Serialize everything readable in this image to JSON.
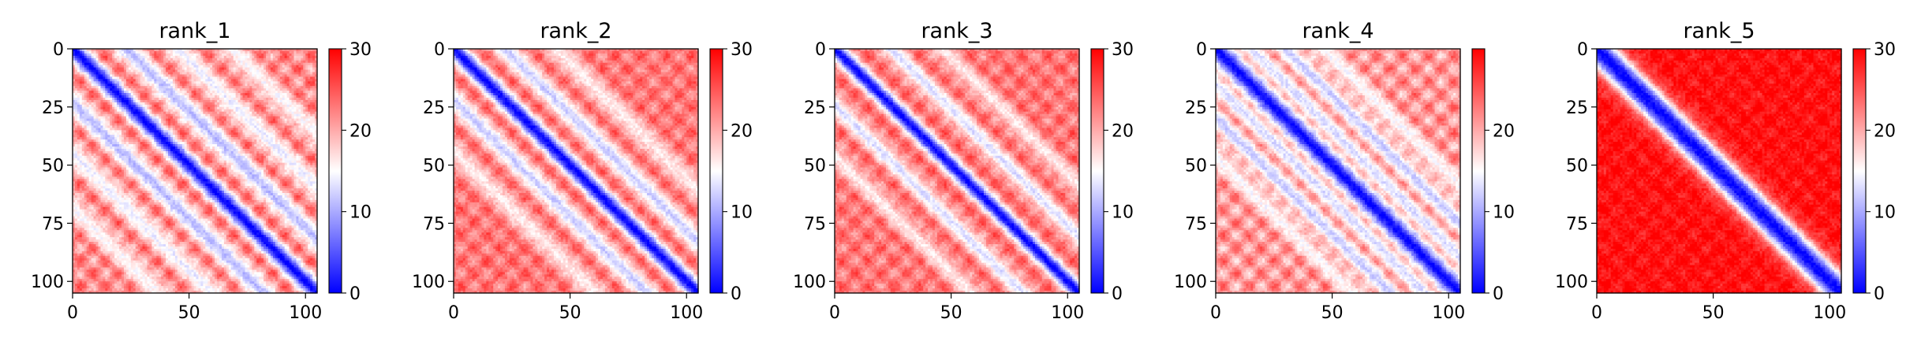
{
  "chart_data": [
    {
      "type": "heatmap",
      "title": "rank_1",
      "xlabel": "",
      "ylabel": "",
      "matrix_size": 105,
      "x_ticks": [
        0,
        50,
        100
      ],
      "y_ticks": [
        0,
        25,
        50,
        75,
        100
      ],
      "xlim": [
        0,
        105
      ],
      "ylim": [
        105,
        0
      ],
      "colorbar": {
        "range": [
          0,
          30
        ],
        "ticks": [
          0,
          10,
          20,
          30
        ],
        "colors": [
          "#0000ff",
          "#ffffff",
          "#ff0000"
        ]
      },
      "values_description": {
        "diagonal_value": 0,
        "band_width": 3.5,
        "offdiag_bands": [
          {
            "offset": 23,
            "value": 11,
            "width": 4
          },
          {
            "offset": 45,
            "value": 14,
            "width": 4
          },
          {
            "offset": 68,
            "value": 15,
            "width": 4
          }
        ],
        "background_value": 22,
        "checker_period": 11,
        "checker_amplitude": 4
      }
    },
    {
      "type": "heatmap",
      "title": "rank_2",
      "xlabel": "",
      "ylabel": "",
      "matrix_size": 105,
      "x_ticks": [
        0,
        50,
        100
      ],
      "y_ticks": [
        0,
        25,
        50,
        75,
        100
      ],
      "xlim": [
        0,
        105
      ],
      "ylim": [
        105,
        0
      ],
      "colorbar": {
        "range": [
          0,
          30
        ],
        "ticks": [
          0,
          10,
          20,
          30
        ],
        "colors": [
          "#0000ff",
          "#ffffff",
          "#ff0000"
        ]
      },
      "values_description": {
        "diagonal_value": 0,
        "band_width": 3.5,
        "offdiag_bands": [
          {
            "offset": 22,
            "value": 12,
            "width": 4
          },
          {
            "offset": 44,
            "value": 16,
            "width": 4
          }
        ],
        "background_value": 23,
        "checker_period": 11,
        "checker_amplitude": 3
      }
    },
    {
      "type": "heatmap",
      "title": "rank_3",
      "xlabel": "",
      "ylabel": "",
      "matrix_size": 105,
      "x_ticks": [
        0,
        50,
        100
      ],
      "y_ticks": [
        0,
        25,
        50,
        75,
        100
      ],
      "xlim": [
        0,
        105
      ],
      "ylim": [
        105,
        0
      ],
      "colorbar": {
        "range": [
          0,
          30
        ],
        "ticks": [
          0,
          10,
          20,
          30
        ],
        "colors": [
          "#0000ff",
          "#ffffff",
          "#ff0000"
        ]
      },
      "values_description": {
        "diagonal_value": 0,
        "band_width": 3.2,
        "offdiag_bands": [
          {
            "offset": 24,
            "value": 13,
            "width": 3.5
          },
          {
            "offset": 46,
            "value": 16,
            "width": 3.5
          }
        ],
        "background_value": 23,
        "checker_period": 11,
        "checker_amplitude": 3
      }
    },
    {
      "type": "heatmap",
      "title": "rank_4",
      "xlabel": "",
      "ylabel": "",
      "matrix_size": 105,
      "x_ticks": [
        0,
        50,
        100
      ],
      "y_ticks": [
        0,
        25,
        50,
        75,
        100
      ],
      "xlim": [
        0,
        105
      ],
      "ylim": [
        105,
        0
      ],
      "colorbar": {
        "range": [
          0,
          30
        ],
        "ticks": [
          0,
          10,
          20
        ],
        "colors": [
          "#0000ff",
          "#ffffff",
          "#ff0000"
        ]
      },
      "values_description": {
        "diagonal_value": 0,
        "band_width": 4,
        "offdiag_bands": [
          {
            "offset": 15,
            "value": 13,
            "width": 3.5
          },
          {
            "offset": 30,
            "value": 12,
            "width": 3.5
          },
          {
            "offset": 46,
            "value": 15,
            "width": 3.5
          }
        ],
        "background_value": 21,
        "checker_period": 11,
        "checker_amplitude": 4
      }
    },
    {
      "type": "heatmap",
      "title": "rank_5",
      "xlabel": "",
      "ylabel": "",
      "matrix_size": 105,
      "x_ticks": [
        0,
        50,
        100
      ],
      "y_ticks": [
        0,
        25,
        50,
        75,
        100
      ],
      "xlim": [
        0,
        105
      ],
      "ylim": [
        105,
        0
      ],
      "colorbar": {
        "range": [
          0,
          30
        ],
        "ticks": [
          0,
          10,
          20,
          30
        ],
        "colors": [
          "#0000ff",
          "#ffffff",
          "#ff0000"
        ]
      },
      "values_description": {
        "diagonal_value": 0,
        "band_width": 6,
        "offdiag_bands": [],
        "background_value": 29,
        "checker_period": 11,
        "checker_amplitude": 1.5
      }
    }
  ]
}
